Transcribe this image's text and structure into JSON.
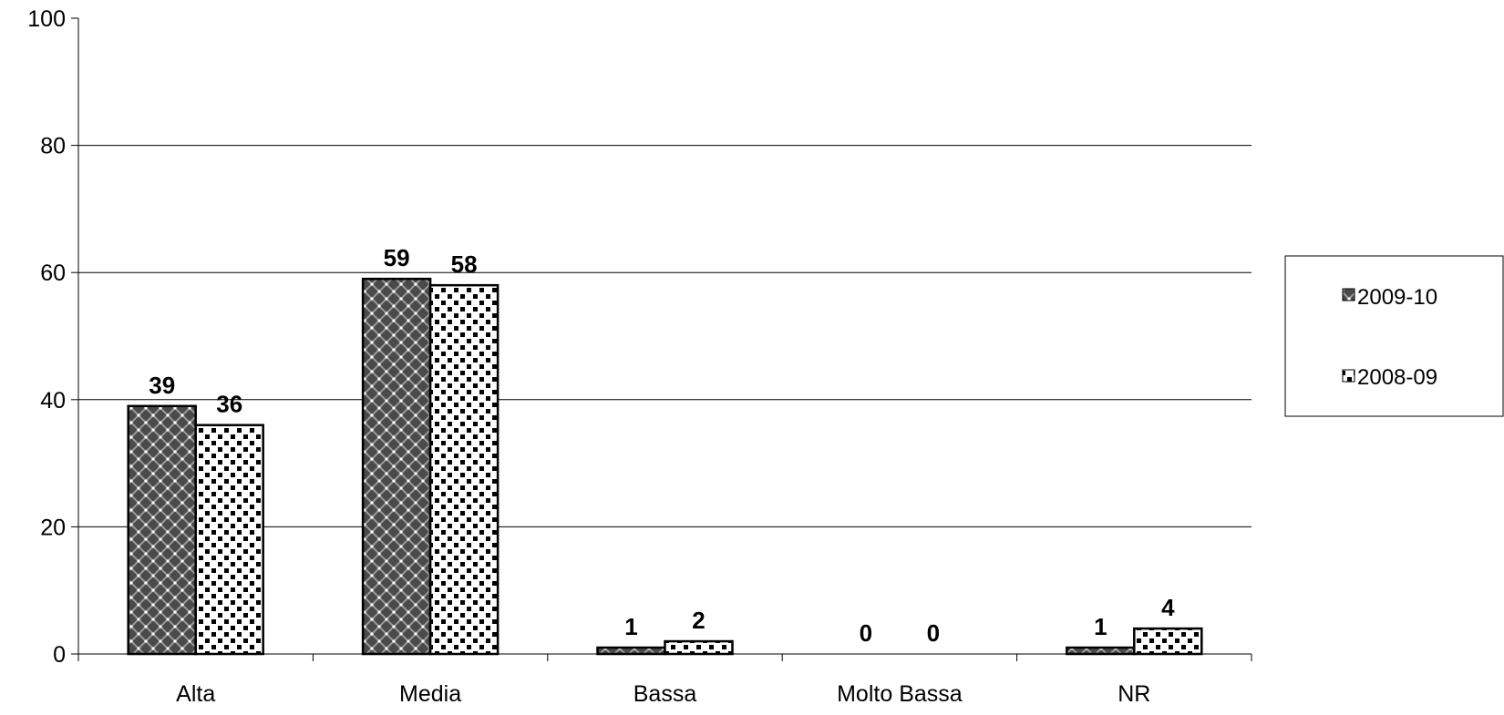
{
  "chart_data": {
    "type": "bar",
    "categories": [
      "Alta",
      "Media",
      "Bassa",
      "Molto Bassa",
      "NR"
    ],
    "series": [
      {
        "name": "2009-10",
        "values": [
          39,
          59,
          1,
          0,
          1
        ],
        "pattern": "crosshatch-dots"
      },
      {
        "name": "2008-09",
        "values": [
          36,
          58,
          2,
          0,
          4
        ],
        "pattern": "checker-dots"
      }
    ],
    "ylim": [
      0,
      100
    ],
    "yticks": [
      0,
      20,
      40,
      60,
      80,
      100
    ],
    "grid": true,
    "legend_position": "right",
    "data_labels": true,
    "colors": {
      "bar_fill": "#ffffff",
      "bar_stroke": "#000000",
      "grid": "#000000"
    }
  }
}
